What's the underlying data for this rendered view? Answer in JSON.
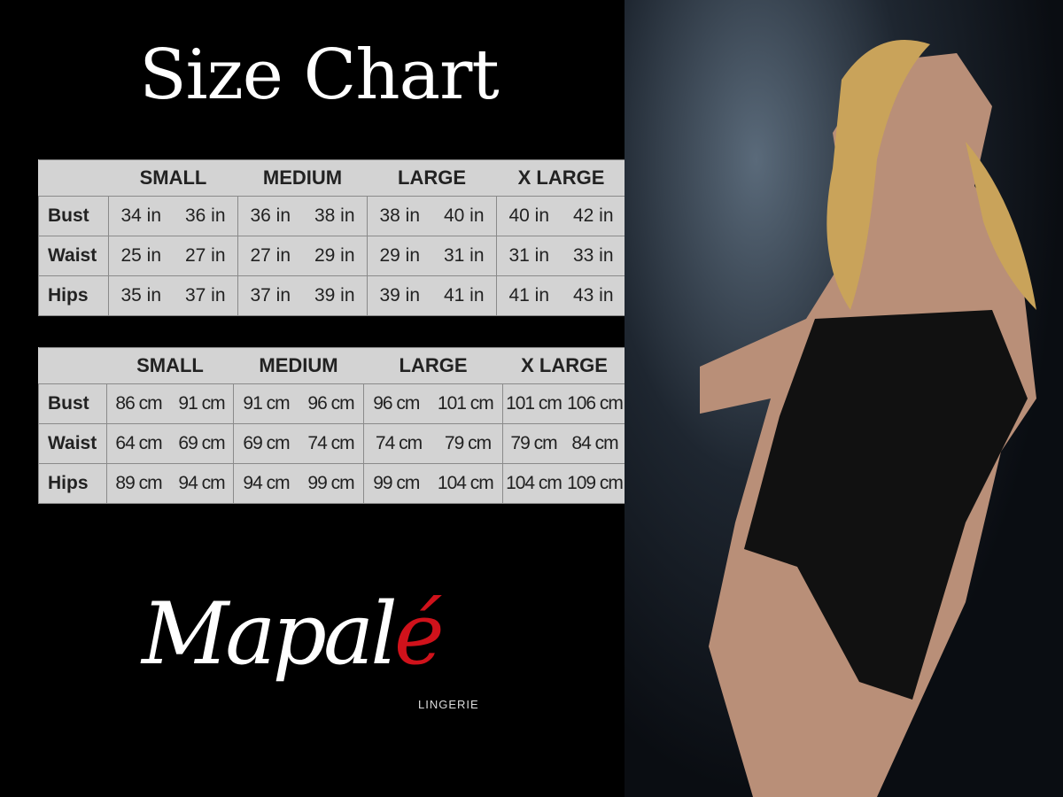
{
  "title": "Size Chart",
  "sizes": [
    "SMALL",
    "MEDIUM",
    "LARGE",
    "X LARGE"
  ],
  "inches": {
    "rows": [
      {
        "label": "Bust",
        "values": [
          "34 in",
          "36 in",
          "36 in",
          "38 in",
          "38 in",
          "40 in",
          "40 in",
          "42 in"
        ]
      },
      {
        "label": "Waist",
        "values": [
          "25 in",
          "27 in",
          "27 in",
          "29 in",
          "29 in",
          "31 in",
          "31 in",
          "33 in"
        ]
      },
      {
        "label": "Hips",
        "values": [
          "35 in",
          "37 in",
          "37 in",
          "39 in",
          "39 in",
          "41 in",
          "41 in",
          "43 in"
        ]
      }
    ]
  },
  "centimeters": {
    "rows": [
      {
        "label": "Bust",
        "values": [
          "86 cm",
          "91 cm",
          "91 cm",
          "96 cm",
          "96 cm",
          "101 cm",
          "101 cm",
          "106 cm"
        ]
      },
      {
        "label": "Waist",
        "values": [
          "64 cm",
          "69 cm",
          "69 cm",
          "74 cm",
          "74 cm",
          "79 cm",
          "79 cm",
          "84 cm"
        ]
      },
      {
        "label": "Hips",
        "values": [
          "89 cm",
          "94 cm",
          "94 cm",
          "99 cm",
          "99 cm",
          "104 cm",
          "104 cm",
          "109 cm"
        ]
      }
    ]
  },
  "logo": {
    "text_main": "Mapal",
    "text_accent": "é",
    "subtitle": "LINGERIE",
    "accent_color": "#d0121b"
  }
}
